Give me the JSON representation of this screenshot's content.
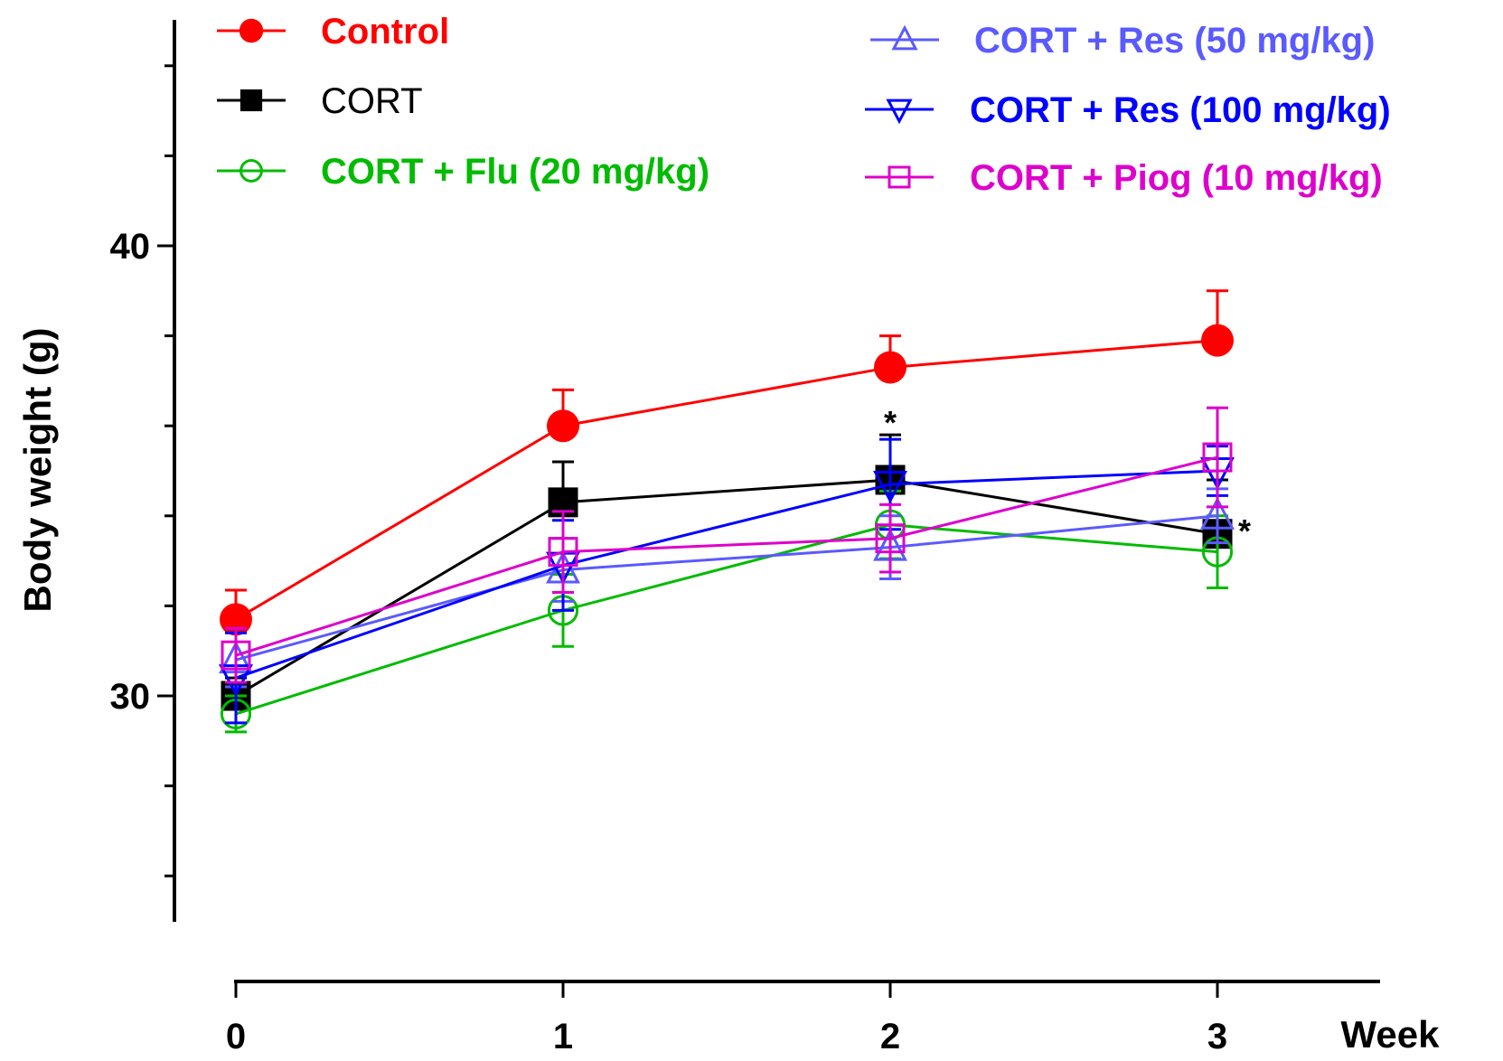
{
  "chart_data": {
    "type": "line",
    "title": "",
    "xlabel": "Week",
    "ylabel": "Body weight (g)",
    "x": [
      0,
      1,
      2,
      3
    ],
    "x_tick_labels": [
      "0",
      "1",
      "2",
      "3"
    ],
    "xlim": [
      0,
      3.5
    ],
    "ylim": [
      25,
      45
    ],
    "y_major_ticks": [
      30,
      40
    ],
    "y_tick_labels": [
      "30",
      "40"
    ],
    "y_minor_ticks": [
      26,
      28,
      32,
      34,
      36,
      38,
      42,
      44
    ],
    "grid": false,
    "legend_placement": "top",
    "error_bars": "SEM",
    "series": [
      {
        "name": "Control",
        "color": "#FF0000",
        "marker": "filled-circle",
        "bold": true,
        "values": [
          31.7,
          36.0,
          37.3,
          37.9
        ],
        "errors": [
          0.65,
          0.8,
          0.7,
          1.1
        ]
      },
      {
        "name": "CORT",
        "color": "#000000",
        "marker": "filled-square",
        "bold": false,
        "values": [
          30.0,
          34.3,
          34.8,
          33.6
        ],
        "errors": [
          0.4,
          0.9,
          1.0,
          1.2
        ]
      },
      {
        "name": "CORT + Flu (20 mg/kg)",
        "color": "#00BB00",
        "marker": "open-circle",
        "bold": true,
        "values": [
          29.6,
          31.9,
          33.8,
          33.2
        ],
        "errors": [
          0.4,
          0.8,
          0.75,
          0.8
        ]
      },
      {
        "name": "CORT + Res (50 mg/kg)",
        "color": "#5A5AFF",
        "marker": "open-triangle-up",
        "bold": true,
        "values": [
          30.8,
          32.8,
          33.3,
          34.0
        ],
        "errors": [
          0.6,
          0.7,
          0.7,
          0.6
        ]
      },
      {
        "name": "CORT + Res (100 mg/kg)",
        "color": "#0000FF",
        "marker": "open-triangle-down",
        "bold": true,
        "values": [
          30.4,
          32.9,
          34.7,
          35.0
        ],
        "errors": [
          1.0,
          1.0,
          1.0,
          0.55
        ]
      },
      {
        "name": "CORT + Piog (10 mg/kg)",
        "color": "#DD00CC",
        "marker": "open-square",
        "bold": true,
        "values": [
          30.9,
          33.2,
          33.5,
          35.3
        ],
        "errors": [
          0.6,
          0.9,
          0.75,
          1.1
        ]
      }
    ],
    "annotations": [
      {
        "text": "*",
        "x": 2,
        "y": 36.5,
        "note": "above CORT at week 2"
      },
      {
        "text": "*",
        "x": 3,
        "y": 33.8,
        "note": "right of CORT at week 3"
      }
    ]
  }
}
